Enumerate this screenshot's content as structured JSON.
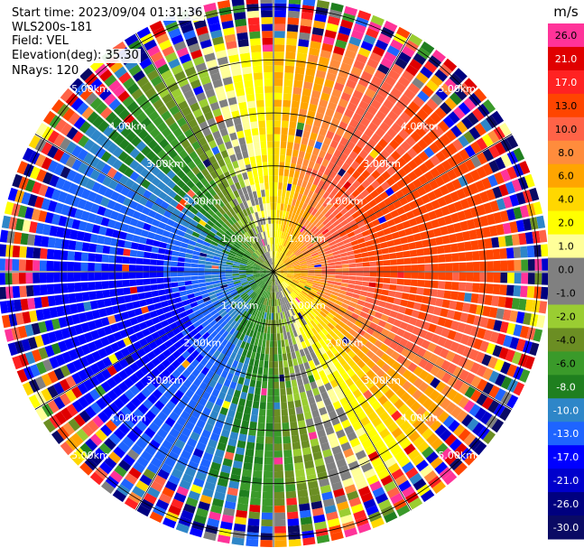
{
  "info": {
    "start_time": "Start time: 2023/09/04 01:31:36",
    "instrument": "WLS200s-181",
    "field": "Field: VEL",
    "elevation": "Elevation(deg): 35.30",
    "nrays": "NRays: 120"
  },
  "chart_data": {
    "type": "ppi",
    "field": "VEL",
    "n_rays": 120,
    "elevation_deg": 35.3,
    "range_rings_km": [
      1,
      2,
      3,
      4,
      5
    ],
    "ring_labels": [
      "1.00km",
      "2.00km",
      "3.00km",
      "4.00km",
      "5.00km"
    ],
    "max_range_km": 5.2,
    "colorbar": {
      "unit": "m/s",
      "levels": [
        -30,
        -26,
        -21,
        -17,
        -13,
        -10,
        -8,
        -6,
        -4,
        -2,
        -1,
        0,
        1,
        2,
        4,
        6,
        8,
        10,
        13,
        17,
        21,
        26,
        30
      ],
      "tick_labels": [
        "26.0",
        "21.0",
        "17.0",
        "13.0",
        "10.0",
        "8.0",
        "6.0",
        "4.0",
        "2.0",
        "1.0",
        "0.0",
        "-1.0",
        "-2.0",
        "-4.0",
        "-6.0",
        "-8.0",
        "-10.0",
        "-13.0",
        "-17.0",
        "-21.0",
        "-26.0",
        "-30.0"
      ],
      "colors": [
        "#0a0a64",
        "#00007f",
        "#0000cc",
        "#0000ff",
        "#1e64ff",
        "#2e86c8",
        "#1f7f1f",
        "#3a9a2a",
        "#6b8e23",
        "#9acd32",
        "#808080",
        "#808080",
        "#ffff99",
        "#ffff00",
        "#ffd700",
        "#ffa500",
        "#ff8c3c",
        "#ff6347",
        "#ff4500",
        "#ff2222",
        "#e00000",
        "#ff3399"
      ]
    },
    "pattern": {
      "approaching_sector_deg": [
        200,
        340
      ],
      "receding_sector_deg": [
        20,
        160
      ],
      "noise_start_km": 4.2,
      "max_speed_ms": 15
    }
  }
}
